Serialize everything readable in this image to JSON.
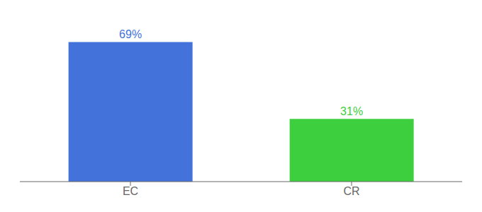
{
  "chart_data": {
    "type": "bar",
    "categories": [
      "EC",
      "CR"
    ],
    "values": [
      69,
      31
    ],
    "value_labels": [
      "69%",
      "31%"
    ],
    "colors": [
      "#4472db",
      "#3ecf3e"
    ],
    "ylim": [
      0,
      80
    ],
    "data_labels": true,
    "tick_labels": "x",
    "grid": false
  }
}
